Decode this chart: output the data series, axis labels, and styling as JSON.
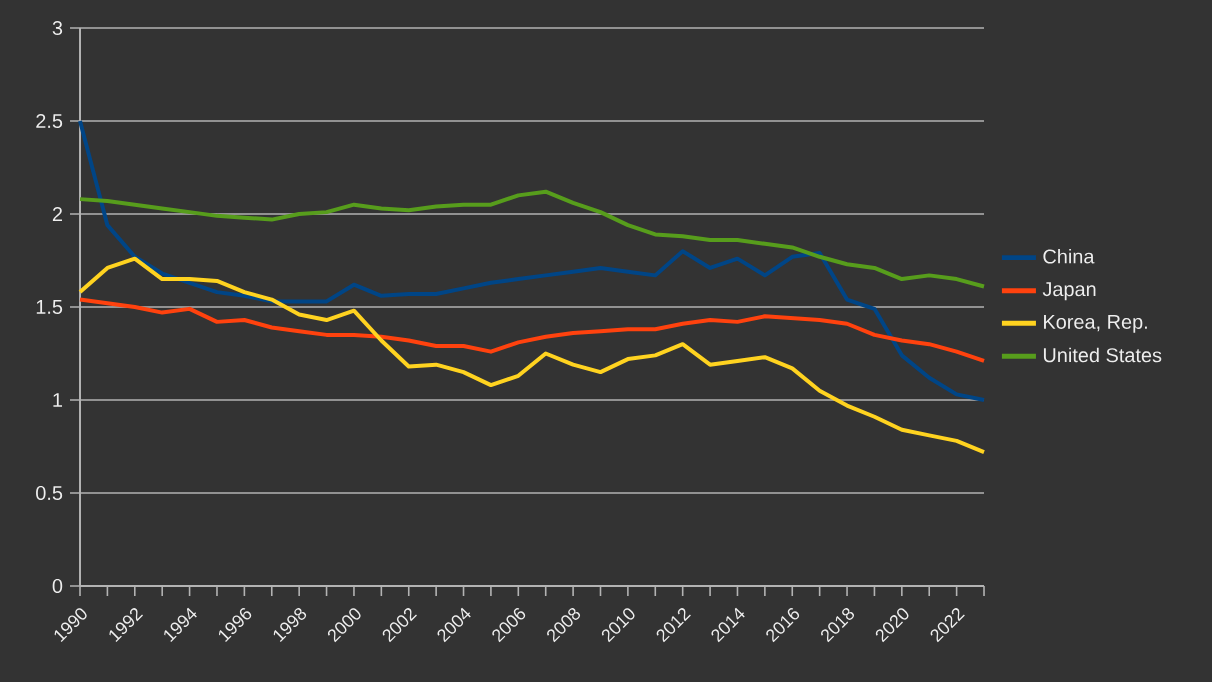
{
  "chart_data": {
    "type": "line",
    "x": [
      1990,
      1991,
      1992,
      1993,
      1994,
      1995,
      1996,
      1997,
      1998,
      1999,
      2000,
      2001,
      2002,
      2003,
      2004,
      2005,
      2006,
      2007,
      2008,
      2009,
      2010,
      2011,
      2012,
      2013,
      2014,
      2015,
      2016,
      2017,
      2018,
      2019,
      2020,
      2021,
      2022,
      2023
    ],
    "series": [
      {
        "name": "China",
        "color": "#004586",
        "values": [
          2.5,
          1.94,
          1.77,
          1.68,
          1.63,
          1.58,
          1.56,
          1.53,
          1.53,
          1.53,
          1.62,
          1.56,
          1.57,
          1.57,
          1.6,
          1.63,
          1.65,
          1.67,
          1.69,
          1.71,
          1.69,
          1.67,
          1.8,
          1.71,
          1.76,
          1.67,
          1.77,
          1.79,
          1.54,
          1.49,
          1.24,
          1.12,
          1.03,
          1.0
        ]
      },
      {
        "name": "Japan",
        "color": "#ff420e",
        "values": [
          1.54,
          1.52,
          1.5,
          1.47,
          1.49,
          1.42,
          1.43,
          1.39,
          1.37,
          1.35,
          1.35,
          1.34,
          1.32,
          1.29,
          1.29,
          1.26,
          1.31,
          1.34,
          1.36,
          1.37,
          1.38,
          1.38,
          1.41,
          1.43,
          1.42,
          1.45,
          1.44,
          1.43,
          1.41,
          1.35,
          1.32,
          1.3,
          1.26,
          1.21
        ]
      },
      {
        "name": "Korea, Rep.",
        "color": "#ffd320",
        "values": [
          1.58,
          1.71,
          1.76,
          1.65,
          1.65,
          1.64,
          1.58,
          1.54,
          1.46,
          1.43,
          1.48,
          1.32,
          1.18,
          1.19,
          1.15,
          1.08,
          1.13,
          1.25,
          1.19,
          1.15,
          1.22,
          1.24,
          1.3,
          1.19,
          1.21,
          1.23,
          1.17,
          1.05,
          0.97,
          0.91,
          0.84,
          0.81,
          0.78,
          0.72
        ]
      },
      {
        "name": "United States",
        "color": "#579d1c",
        "values": [
          2.08,
          2.07,
          2.05,
          2.03,
          2.01,
          1.99,
          1.98,
          1.97,
          2.0,
          2.01,
          2.05,
          2.03,
          2.02,
          2.04,
          2.05,
          2.05,
          2.1,
          2.12,
          2.06,
          2.01,
          1.94,
          1.89,
          1.88,
          1.86,
          1.86,
          1.84,
          1.82,
          1.77,
          1.73,
          1.71,
          1.65,
          1.67,
          1.65,
          1.61
        ]
      }
    ],
    "xlim": [
      1990,
      2023
    ],
    "xticks": [
      1990,
      {
        "value": 1991,
        "label": null
      },
      1992,
      {
        "value": 1993,
        "label": null
      },
      1994,
      {
        "value": 1995,
        "label": null
      },
      1996,
      {
        "value": 1997,
        "label": null
      },
      1998,
      {
        "value": 1999,
        "label": null
      },
      2000,
      {
        "value": 2001,
        "label": null
      },
      2002,
      {
        "value": 2003,
        "label": null
      },
      2004,
      {
        "value": 2005,
        "label": null
      },
      2006,
      {
        "value": 2007,
        "label": null
      },
      2008,
      {
        "value": 2009,
        "label": null
      },
      2010,
      {
        "value": 2011,
        "label": null
      },
      2012,
      {
        "value": 2013,
        "label": null
      },
      2014,
      {
        "value": 2015,
        "label": null
      },
      2016,
      {
        "value": 2017,
        "label": null
      },
      2018,
      {
        "value": 2019,
        "label": null
      },
      2020,
      {
        "value": 2021,
        "label": null
      },
      2022,
      {
        "value": 2023,
        "label": null
      }
    ],
    "ylim": [
      0,
      3
    ],
    "yticks": [
      0,
      0.5,
      1,
      1.5,
      2,
      2.5,
      3
    ],
    "grid": "y",
    "legend": "right",
    "marker": "none",
    "line_style": "solid"
  }
}
